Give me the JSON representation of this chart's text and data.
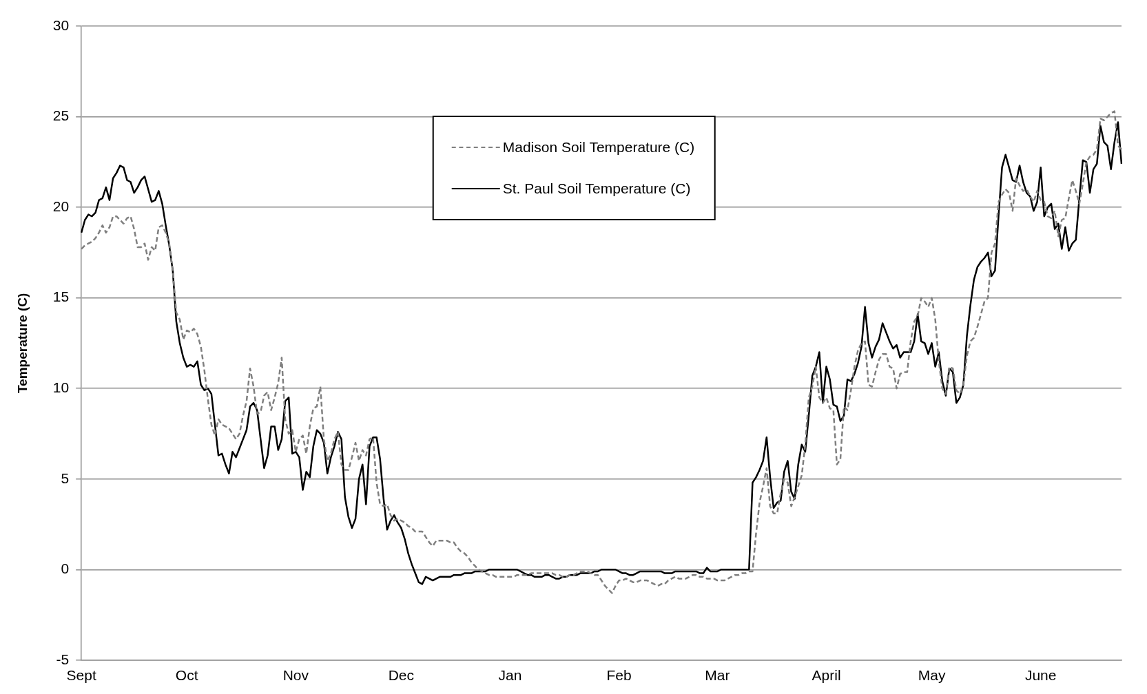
{
  "chart_data": {
    "type": "line",
    "ylabel": "Temperature (C)",
    "categories": [
      "Sept",
      null,
      null,
      null,
      null,
      null,
      null,
      null,
      null,
      null,
      null,
      null,
      null,
      null,
      null,
      null,
      null,
      null,
      null,
      null,
      null,
      null,
      null,
      null,
      null,
      null,
      null,
      null,
      null,
      null,
      "Oct",
      null,
      null,
      null,
      null,
      null,
      null,
      null,
      null,
      null,
      null,
      null,
      null,
      null,
      null,
      null,
      null,
      null,
      null,
      null,
      null,
      null,
      null,
      null,
      null,
      null,
      null,
      null,
      null,
      null,
      null,
      "Nov",
      null,
      null,
      null,
      null,
      null,
      null,
      null,
      null,
      null,
      null,
      null,
      null,
      null,
      null,
      null,
      null,
      null,
      null,
      null,
      null,
      null,
      null,
      null,
      null,
      null,
      null,
      null,
      null,
      null,
      "Dec",
      null,
      null,
      null,
      null,
      null,
      null,
      null,
      null,
      null,
      null,
      null,
      null,
      null,
      null,
      null,
      null,
      null,
      null,
      null,
      null,
      null,
      null,
      null,
      null,
      null,
      null,
      null,
      null,
      null,
      null,
      "Jan",
      null,
      null,
      null,
      null,
      null,
      null,
      null,
      null,
      null,
      null,
      null,
      null,
      null,
      null,
      null,
      null,
      null,
      null,
      null,
      null,
      null,
      null,
      null,
      null,
      null,
      null,
      null,
      null,
      null,
      null,
      "Feb",
      null,
      null,
      null,
      null,
      null,
      null,
      null,
      null,
      null,
      null,
      null,
      null,
      null,
      null,
      null,
      null,
      null,
      null,
      null,
      null,
      null,
      null,
      null,
      null,
      null,
      null,
      null,
      "Mar",
      null,
      null,
      null,
      null,
      null,
      null,
      null,
      null,
      null,
      null,
      null,
      null,
      null,
      null,
      null,
      null,
      null,
      null,
      null,
      null,
      null,
      null,
      null,
      null,
      null,
      null,
      null,
      null,
      null,
      null,
      "April",
      null,
      null,
      null,
      null,
      null,
      null,
      null,
      null,
      null,
      null,
      null,
      null,
      null,
      null,
      null,
      null,
      null,
      null,
      null,
      null,
      null,
      null,
      null,
      null,
      null,
      null,
      null,
      null,
      null,
      "May",
      null,
      null,
      null,
      null,
      null,
      null,
      null,
      null,
      null,
      null,
      null,
      null,
      null,
      null,
      null,
      null,
      null,
      null,
      null,
      null,
      null,
      null,
      null,
      null,
      null,
      null,
      null,
      null,
      null,
      null,
      "June",
      null,
      null,
      null,
      null,
      null,
      null,
      null,
      null,
      null,
      null,
      null,
      null,
      null,
      null,
      null,
      null,
      null,
      null,
      null,
      null,
      null,
      null,
      null
    ],
    "ylim": [
      -5,
      30
    ],
    "yticks": [
      -5,
      0,
      5,
      10,
      15,
      20,
      25,
      30
    ],
    "grid": "y",
    "legend": "top",
    "marker": "none",
    "series": [
      {
        "name": "Madison Soil Temperature (C)",
        "color": "#7f7f7f",
        "line_style": "dashed",
        "values": [
          17.7,
          17.9,
          18.0,
          18.1,
          18.3,
          18.6,
          19.0,
          18.6,
          18.9,
          19.5,
          19.5,
          19.3,
          19.1,
          19.4,
          19.5,
          18.8,
          17.8,
          17.8,
          18.0,
          17.1,
          17.8,
          17.6,
          18.9,
          19.0,
          18.6,
          18.0,
          16.5,
          14.2,
          13.8,
          12.7,
          13.2,
          13.1,
          13.3,
          13.0,
          12.3,
          11.0,
          9.4,
          8.0,
          7.4,
          8.3,
          8.0,
          7.9,
          7.8,
          7.5,
          7.2,
          7.5,
          8.5,
          9.3,
          11.1,
          10.1,
          8.6,
          8.7,
          9.6,
          9.8,
          8.8,
          9.5,
          10.3,
          11.7,
          8.3,
          7.5,
          7.7,
          6.5,
          7.2,
          7.4,
          6.4,
          7.9,
          8.9,
          9.0,
          10.1,
          7.2,
          6.0,
          6.4,
          7.2,
          7.6,
          5.8,
          5.5,
          5.5,
          6.2,
          7.0,
          6.0,
          6.6,
          6.3,
          7.2,
          7.3,
          4.8,
          3.6,
          3.5,
          3.6,
          3.0,
          2.7,
          2.8,
          2.7,
          2.6,
          2.4,
          2.3,
          2.1,
          2.1,
          2.1,
          1.8,
          1.5,
          1.3,
          1.6,
          1.6,
          1.6,
          1.6,
          1.5,
          1.5,
          1.2,
          1.0,
          0.9,
          0.7,
          0.4,
          0.2,
          0.0,
          -0.1,
          -0.2,
          -0.3,
          -0.3,
          -0.4,
          -0.4,
          -0.4,
          -0.4,
          -0.4,
          -0.4,
          -0.3,
          -0.3,
          -0.3,
          -0.3,
          -0.2,
          -0.2,
          -0.2,
          -0.2,
          -0.2,
          -0.2,
          -0.2,
          -0.3,
          -0.3,
          -0.4,
          -0.4,
          -0.3,
          -0.3,
          -0.2,
          -0.1,
          -0.1,
          -0.1,
          -0.2,
          -0.3,
          -0.3,
          -0.6,
          -0.9,
          -1.1,
          -1.3,
          -0.9,
          -0.6,
          -0.6,
          -0.5,
          -0.6,
          -0.7,
          -0.7,
          -0.6,
          -0.6,
          -0.6,
          -0.7,
          -0.8,
          -0.9,
          -0.8,
          -0.8,
          -0.6,
          -0.5,
          -0.4,
          -0.5,
          -0.5,
          -0.5,
          -0.4,
          -0.3,
          -0.3,
          -0.4,
          -0.4,
          -0.5,
          -0.5,
          -0.5,
          -0.6,
          -0.6,
          -0.6,
          -0.5,
          -0.4,
          -0.3,
          -0.3,
          -0.2,
          -0.2,
          -0.1,
          -0.1,
          2.0,
          3.7,
          4.6,
          5.6,
          3.5,
          3.1,
          3.1,
          4.2,
          5.0,
          4.8,
          3.5,
          4.0,
          4.6,
          5.2,
          6.9,
          9.5,
          10.1,
          11.2,
          9.5,
          9.2,
          9.5,
          8.9,
          8.8,
          5.8,
          6.1,
          9.0,
          8.8,
          9.9,
          11.2,
          12.1,
          12.5,
          12.6,
          10.2,
          10.1,
          10.9,
          11.6,
          11.9,
          11.9,
          11.2,
          11.1,
          10.0,
          10.8,
          10.9,
          10.9,
          12.6,
          13.7,
          14.0,
          15.0,
          14.8,
          14.5,
          15.0,
          13.8,
          11.5,
          10.0,
          9.7,
          11.2,
          11.1,
          9.9,
          9.7,
          10.2,
          11.8,
          12.6,
          12.8,
          13.4,
          14.1,
          14.8,
          15.0,
          17.5,
          18.0,
          20.3,
          20.7,
          21.0,
          20.8,
          19.8,
          21.6,
          21.2,
          20.9,
          21.0,
          20.6,
          20.3,
          20.9,
          20.4,
          20.3,
          19.5,
          19.4,
          19.8,
          18.4,
          19.3,
          19.4,
          20.5,
          21.5,
          20.9,
          20.2,
          21.3,
          22.5,
          22.8,
          22.9,
          23.2,
          24.9,
          24.8,
          25.0,
          25.2,
          25.3,
          23.4,
          23.2
        ]
      },
      {
        "name": "St. Paul Soil Temperature (C)",
        "color": "#000000",
        "line_style": "solid",
        "values": [
          18.6,
          19.3,
          19.6,
          19.5,
          19.7,
          20.4,
          20.5,
          21.1,
          20.4,
          21.6,
          21.9,
          22.3,
          22.2,
          21.5,
          21.4,
          20.8,
          21.1,
          21.5,
          21.7,
          21.0,
          20.3,
          20.4,
          20.9,
          20.2,
          19.0,
          17.9,
          16.5,
          13.7,
          12.5,
          11.7,
          11.2,
          11.3,
          11.2,
          11.5,
          10.2,
          9.9,
          10.0,
          9.7,
          8.0,
          6.3,
          6.4,
          5.8,
          5.3,
          6.5,
          6.2,
          6.7,
          7.2,
          7.7,
          9.0,
          9.2,
          8.8,
          7.2,
          5.6,
          6.3,
          7.9,
          7.9,
          6.6,
          7.2,
          9.3,
          9.5,
          6.4,
          6.5,
          6.2,
          4.4,
          5.4,
          5.1,
          6.8,
          7.7,
          7.5,
          7.0,
          5.3,
          6.2,
          6.8,
          7.6,
          7.2,
          4.0,
          2.9,
          2.3,
          2.8,
          5.0,
          5.8,
          3.6,
          6.8,
          7.3,
          7.3,
          6.1,
          3.9,
          2.2,
          2.7,
          3.0,
          2.6,
          2.3,
          1.7,
          0.9,
          0.3,
          -0.2,
          -0.7,
          -0.8,
          -0.4,
          -0.5,
          -0.6,
          -0.5,
          -0.4,
          -0.4,
          -0.4,
          -0.4,
          -0.3,
          -0.3,
          -0.3,
          -0.2,
          -0.2,
          -0.2,
          -0.1,
          -0.1,
          -0.1,
          -0.1,
          0,
          0,
          0,
          0,
          0,
          0,
          0,
          0,
          0,
          -0.1,
          -0.2,
          -0.3,
          -0.3,
          -0.4,
          -0.4,
          -0.4,
          -0.3,
          -0.3,
          -0.4,
          -0.5,
          -0.5,
          -0.4,
          -0.4,
          -0.3,
          -0.3,
          -0.3,
          -0.2,
          -0.2,
          -0.2,
          -0.2,
          -0.1,
          -0.1,
          0,
          0,
          0,
          0,
          0,
          -0.1,
          -0.2,
          -0.2,
          -0.3,
          -0.3,
          -0.2,
          -0.1,
          -0.1,
          -0.1,
          -0.1,
          -0.1,
          -0.1,
          -0.1,
          -0.2,
          -0.2,
          -0.2,
          -0.1,
          -0.1,
          -0.1,
          -0.1,
          -0.1,
          -0.1,
          -0.1,
          -0.2,
          -0.2,
          0.1,
          -0.1,
          -0.1,
          -0.1,
          0,
          0,
          0,
          0,
          0,
          0,
          0,
          0,
          0,
          4.8,
          5.1,
          5.5,
          6.0,
          7.3,
          5.1,
          3.4,
          3.7,
          3.8,
          5.4,
          6.0,
          4.3,
          3.9,
          5.8,
          6.9,
          6.5,
          8.5,
          10.7,
          11.2,
          12.0,
          9.2,
          11.2,
          10.5,
          9.1,
          9.0,
          8.2,
          8.5,
          10.5,
          10.4,
          10.8,
          11.4,
          12.3,
          14.5,
          12.5,
          11.7,
          12.3,
          12.7,
          13.6,
          13.1,
          12.6,
          12.2,
          12.4,
          11.7,
          12.0,
          12.0,
          12.0,
          12.6,
          14.1,
          12.6,
          12.5,
          11.9,
          12.5,
          11.2,
          12.0,
          10.4,
          9.6,
          11.1,
          10.9,
          9.2,
          9.5,
          10.2,
          12.9,
          14.6,
          16.0,
          16.7,
          17.0,
          17.2,
          17.5,
          16.2,
          16.5,
          19.5,
          22.2,
          22.9,
          22.2,
          21.5,
          21.4,
          22.3,
          21.4,
          20.8,
          20.6,
          19.8,
          20.3,
          22.2,
          19.5,
          20.0,
          20.2,
          18.8,
          19.1,
          17.7,
          18.9,
          17.6,
          18.0,
          18.2,
          20.5,
          22.6,
          22.5,
          20.8,
          22.1,
          22.4,
          24.5,
          23.6,
          23.4,
          22.1,
          23.6,
          24.7,
          22.4
        ]
      }
    ]
  }
}
